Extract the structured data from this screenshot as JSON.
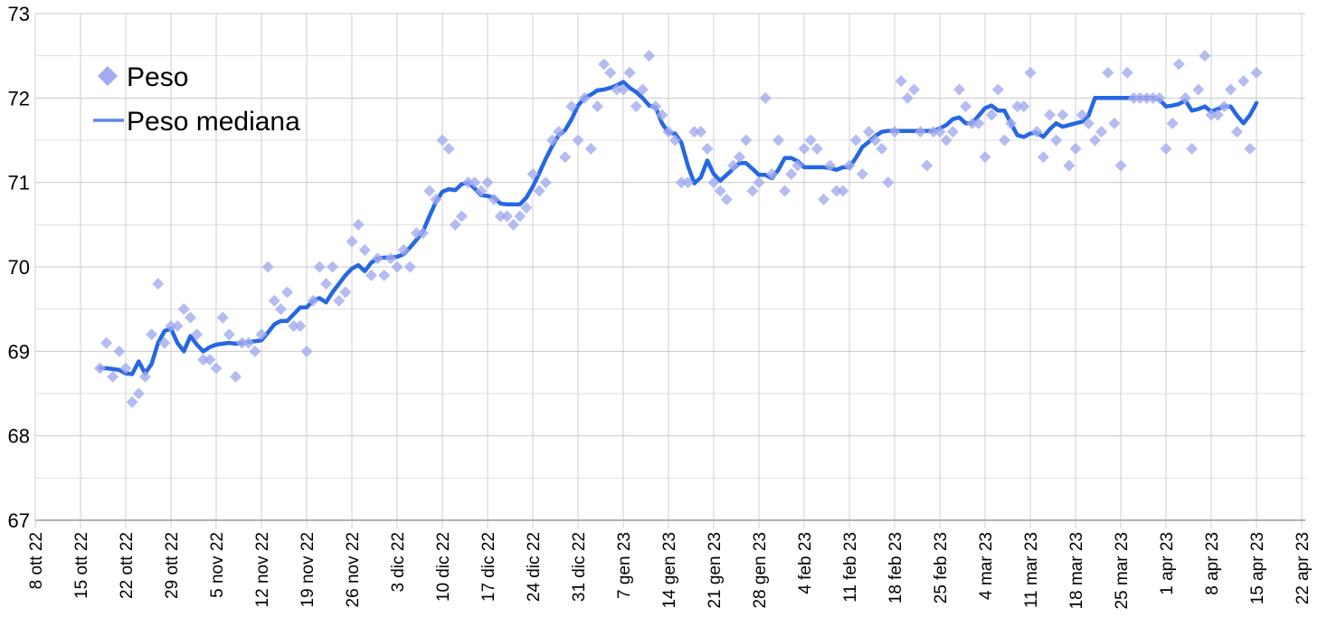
{
  "chart_data": {
    "type": "scatter",
    "title": "",
    "legend": [
      {
        "label": "Peso",
        "marker": "diamond",
        "color": "#a3abef"
      },
      {
        "label": "Peso mediana",
        "marker": "line",
        "color": "#5f86e8"
      }
    ],
    "y_axis": {
      "min": 67,
      "max": 73,
      "major_step": 1,
      "minor_step": 0.5,
      "tick_labels": [
        "73",
        "72",
        "71",
        "70",
        "69",
        "68",
        "67"
      ]
    },
    "x_axis": {
      "tick_labels": [
        "8 ott 22",
        "15 ott 22",
        "22 ott 22",
        "29 ott 22",
        "5 nov 22",
        "12 nov 22",
        "19 nov 22",
        "26 nov 22",
        "3 dic 22",
        "10 dic 22",
        "17 dic 22",
        "24 dic 22",
        "31 dic 22",
        "7 gen 23",
        "14 gen 23",
        "21 gen 23",
        "28 gen 23",
        "4 feb 23",
        "11 feb 23",
        "18 feb 23",
        "25 feb 23",
        "4 mar 23",
        "11 mar 23",
        "18 mar 23",
        "25 mar 23",
        "1 apr 23",
        "8 apr 23",
        "15 apr 23",
        "22 apr 23"
      ],
      "tick_interval_days": 7,
      "first_point_offset_days_from_first_tick": 10
    },
    "grid": {
      "major_color": "#c9c9c9",
      "minor_color": "#dfdfdf",
      "vertical_color": "#cfcfcf",
      "axis_color": "#b3b3b3"
    },
    "series": [
      {
        "name": "Peso",
        "type": "scatter",
        "marker": "diamond",
        "color": "#a3abef",
        "values": [
          68.8,
          69.1,
          68.7,
          69.0,
          68.8,
          68.4,
          68.5,
          68.7,
          69.2,
          69.8,
          69.1,
          69.3,
          69.3,
          69.5,
          69.4,
          69.2,
          68.9,
          68.9,
          68.8,
          69.4,
          69.2,
          68.7,
          69.1,
          69.1,
          69.0,
          69.2,
          70.0,
          69.6,
          69.5,
          69.7,
          69.3,
          69.3,
          69.0,
          69.6,
          70.0,
          69.8,
          70.0,
          69.6,
          69.7,
          70.3,
          70.5,
          70.2,
          69.9,
          70.1,
          69.9,
          70.1,
          70.0,
          70.2,
          70.0,
          70.4,
          70.4,
          70.9,
          70.8,
          71.5,
          71.4,
          70.5,
          70.6,
          71.0,
          71.0,
          70.9,
          71.0,
          70.8,
          70.6,
          70.6,
          70.5,
          70.6,
          70.7,
          71.1,
          70.9,
          71.0,
          71.5,
          71.6,
          71.3,
          71.9,
          71.5,
          72.0,
          71.4,
          71.9,
          72.4,
          72.3,
          72.1,
          72.1,
          72.3,
          71.9,
          72.1,
          72.5,
          71.9,
          71.8,
          71.6,
          71.5,
          71.0,
          71.0,
          71.6,
          71.6,
          71.4,
          71.0,
          70.9,
          70.8,
          71.2,
          71.3,
          71.5,
          70.9,
          71.0,
          72.0,
          71.1,
          71.5,
          70.9,
          71.1,
          71.2,
          71.4,
          71.5,
          71.4,
          70.8,
          71.2,
          70.9,
          70.9,
          71.2,
          71.5,
          71.1,
          71.6,
          71.5,
          71.4,
          71.0,
          71.6,
          72.2,
          72.0,
          72.1,
          71.6,
          71.2,
          71.6,
          71.6,
          71.5,
          71.6,
          72.1,
          71.9,
          71.7,
          71.7,
          71.3,
          71.8,
          72.1,
          71.5,
          71.7,
          71.9,
          71.9,
          72.3,
          71.6,
          71.3,
          71.8,
          71.5,
          71.8,
          71.2,
          71.4,
          71.8,
          71.7,
          71.5,
          71.6,
          72.3,
          71.7,
          71.2,
          72.3,
          72.0,
          72.0,
          72.0,
          72.0,
          72.0,
          71.4,
          71.7,
          72.4,
          72.0,
          71.4,
          72.1,
          72.5,
          71.8,
          71.8,
          71.9,
          72.1,
          71.6,
          72.2,
          71.4,
          72.3
        ]
      },
      {
        "name": "Peso mediana",
        "type": "line",
        "color": "#2667e3",
        "values": [
          68.8,
          68.8,
          68.79,
          68.78,
          68.74,
          68.73,
          68.88,
          68.74,
          68.85,
          69.1,
          69.24,
          69.27,
          69.1,
          69.0,
          69.18,
          69.08,
          69.0,
          69.05,
          69.08,
          69.09,
          69.1,
          69.09,
          69.1,
          69.11,
          69.12,
          69.13,
          69.22,
          69.32,
          69.36,
          69.36,
          69.44,
          69.52,
          69.52,
          69.6,
          69.63,
          69.58,
          69.7,
          69.8,
          69.9,
          69.98,
          70.02,
          69.95,
          70.05,
          70.1,
          70.11,
          70.11,
          70.12,
          70.15,
          70.23,
          70.32,
          70.42,
          70.6,
          70.77,
          70.89,
          70.92,
          70.91,
          70.98,
          71.0,
          70.93,
          70.85,
          70.84,
          70.82,
          70.75,
          70.74,
          70.74,
          70.74,
          70.82,
          70.95,
          71.11,
          71.28,
          71.43,
          71.56,
          71.62,
          71.75,
          71.91,
          72.0,
          72.04,
          72.09,
          72.1,
          72.12,
          72.15,
          72.19,
          72.12,
          72.07,
          72.0,
          71.91,
          71.89,
          71.7,
          71.59,
          71.58,
          71.47,
          71.2,
          70.99,
          71.06,
          71.26,
          71.1,
          71.02,
          71.09,
          71.16,
          71.23,
          71.23,
          71.16,
          71.09,
          71.09,
          71.05,
          71.15,
          71.29,
          71.29,
          71.25,
          71.18,
          71.18,
          71.18,
          71.18,
          71.17,
          71.15,
          71.18,
          71.18,
          71.29,
          71.42,
          71.48,
          71.55,
          71.6,
          71.61,
          71.61,
          71.61,
          71.61,
          71.61,
          71.61,
          71.61,
          71.61,
          71.64,
          71.68,
          71.75,
          71.77,
          71.7,
          71.7,
          71.79,
          71.88,
          71.91,
          71.85,
          71.85,
          71.7,
          71.56,
          71.54,
          71.58,
          71.59,
          71.54,
          71.63,
          71.7,
          71.66,
          71.68,
          71.7,
          71.72,
          71.79,
          72.0,
          72.0,
          72.0,
          72.0,
          72.0,
          72.0,
          72.0,
          72.0,
          72.0,
          72.0,
          71.98,
          71.9,
          71.91,
          71.93,
          71.97,
          71.85,
          71.87,
          71.9,
          71.84,
          71.87,
          71.9,
          71.9,
          71.79,
          71.7,
          71.8,
          71.94
        ]
      }
    ]
  }
}
